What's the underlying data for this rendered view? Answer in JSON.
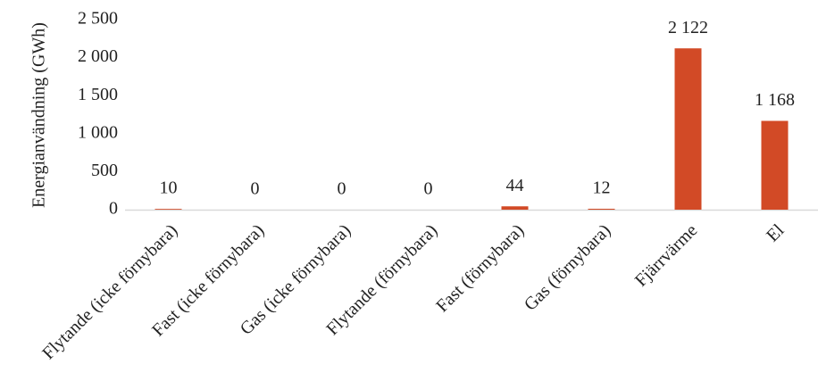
{
  "chart_data": {
    "type": "bar",
    "y_axis_label": "Energianvändning (GWh)",
    "categories": [
      "Flytande (icke förnybara)",
      "Fast (icke förnybara)",
      "Gas (icke förnybara)",
      "Flytande (förnybara)",
      "Fast (förnybara)",
      "Gas (förnybara)",
      "Fjärrvärme",
      "El"
    ],
    "values": [
      10,
      0,
      0,
      0,
      44,
      12,
      2122,
      1168
    ],
    "value_labels": [
      "10",
      "0",
      "0",
      "0",
      "44",
      "12",
      "2 122",
      "1 168"
    ],
    "color": "#d24a26",
    "ylim": [
      0,
      2500
    ],
    "yticks": [
      0,
      500,
      {
        "value": 1000,
        "label": "1 000"
      },
      {
        "value": 1500,
        "label": "1 500"
      },
      {
        "value": 2000,
        "label": "2 000"
      },
      {
        "value": 2500,
        "label": "2 500"
      }
    ],
    "grid": false
  }
}
